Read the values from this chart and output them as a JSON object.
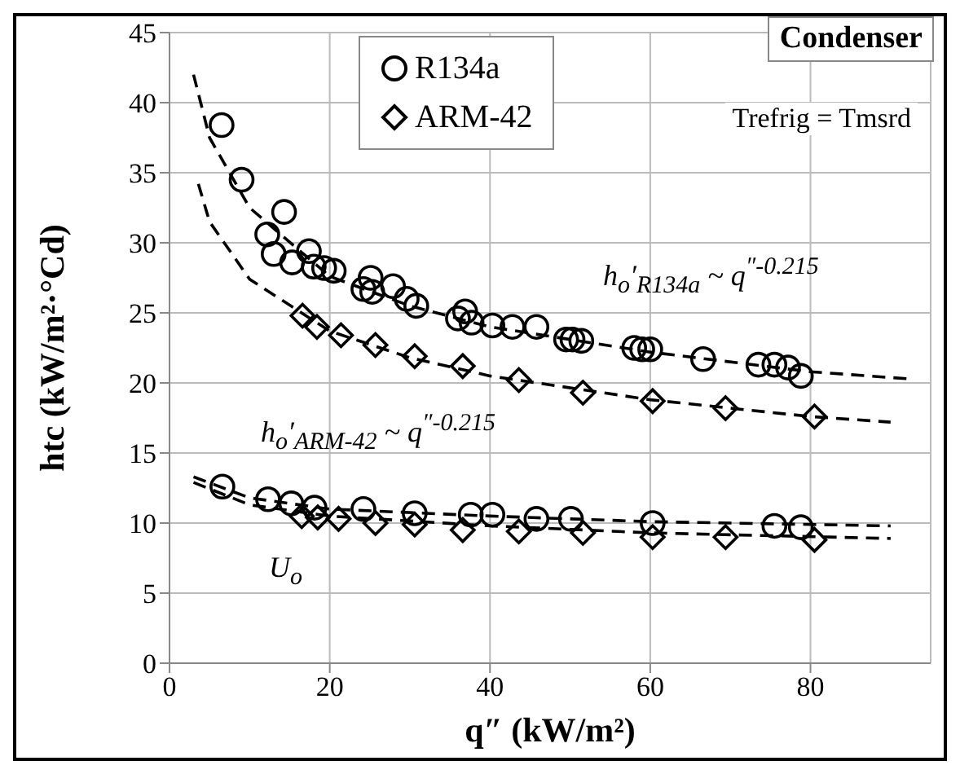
{
  "chart_data": {
    "type": "scatter",
    "xlabel": "q″ (kW/m²)",
    "ylabel": "htc (kW/m²·°Cd)",
    "xlim": [
      0,
      95
    ],
    "xticks": [
      0,
      20,
      40,
      60,
      80
    ],
    "ylim": [
      0,
      45
    ],
    "yticks": [
      0,
      5,
      10,
      15,
      20,
      25,
      30,
      35,
      40,
      45
    ],
    "grid": true,
    "legend": "top",
    "series": [
      {
        "name": "R134a",
        "marker": "circle",
        "color": "#000000",
        "x": [
          6.5,
          9.0,
          12.2,
          13.0,
          14.3,
          15.3,
          17.4,
          18.0,
          19.3,
          20.5,
          24.2,
          25.1,
          25.3,
          27.9,
          29.6,
          30.8,
          36.0,
          36.9,
          37.7,
          40.3,
          42.8,
          45.8,
          49.5,
          50.3,
          51.4,
          58.0,
          59.0,
          60.0,
          66.6,
          73.5,
          75.5,
          77.2,
          78.8,
          6.6,
          12.3,
          15.2,
          18.1,
          24.2,
          30.6,
          37.6,
          40.3,
          45.8,
          50.1,
          60.3,
          75.5,
          78.8
        ],
        "values": [
          38.4,
          34.5,
          30.6,
          29.2,
          32.2,
          28.6,
          29.4,
          28.3,
          28.2,
          28.0,
          26.7,
          27.5,
          26.5,
          26.9,
          26.0,
          25.5,
          24.6,
          25.1,
          24.3,
          24.1,
          24.0,
          24.0,
          23.1,
          23.1,
          23.0,
          22.5,
          22.4,
          22.4,
          21.7,
          21.3,
          21.3,
          21.1,
          20.5,
          12.6,
          11.7,
          11.4,
          11.1,
          11.0,
          10.7,
          10.6,
          10.6,
          10.3,
          10.3,
          10.0,
          9.8,
          9.7
        ]
      },
      {
        "name": "ARM-42",
        "marker": "diamond",
        "color": "#000000",
        "x": [
          16.6,
          18.4,
          21.4,
          25.7,
          30.6,
          36.6,
          43.6,
          51.6,
          60.3,
          69.4,
          80.5,
          16.5,
          18.5,
          21.1,
          25.7,
          30.6,
          36.6,
          43.6,
          51.6,
          60.3,
          69.4,
          80.5
        ],
        "values": [
          24.8,
          24.0,
          23.4,
          22.7,
          21.9,
          21.2,
          20.2,
          19.3,
          18.7,
          18.2,
          17.6,
          10.5,
          10.4,
          10.3,
          10.0,
          9.9,
          9.5,
          9.4,
          9.3,
          9.0,
          9.0,
          8.8
        ]
      },
      {
        "type": "line",
        "line_style": "dashed",
        "marker": "none",
        "color": "#000000",
        "x": [
          3,
          5,
          10,
          20,
          30,
          40,
          60,
          80,
          92
        ],
        "values": [
          42,
          37.5,
          32.5,
          27.6,
          25.5,
          24.0,
          22.2,
          20.8,
          20.3
        ]
      },
      {
        "type": "line",
        "line_style": "dashed",
        "marker": "none",
        "color": "#000000",
        "x": [
          3.6,
          5,
          10,
          20,
          30,
          40,
          60,
          80,
          90
        ],
        "values": [
          34.2,
          31.5,
          27.4,
          23.7,
          21.8,
          20.5,
          18.8,
          17.6,
          17.2
        ]
      },
      {
        "type": "line",
        "line_style": "dashed",
        "marker": "none",
        "color": "#000000",
        "x": [
          3,
          10,
          20,
          40,
          60,
          90
        ],
        "values": [
          13.3,
          11.8,
          11.0,
          10.5,
          10.1,
          9.8
        ]
      },
      {
        "type": "line",
        "line_style": "dashed",
        "marker": "none",
        "color": "#000000",
        "x": [
          3,
          10,
          20,
          40,
          60,
          90
        ],
        "values": [
          12.9,
          11.3,
          10.5,
          9.8,
          9.3,
          8.9
        ]
      }
    ],
    "annotations": [
      "Condenser",
      "Trefrig = Tmsrd",
      "h$_{o}$′$_{R134a}$ ~ q$^{″-0.215}$",
      "h$_{o}$′$_{ARM-42}$ ~ q$^{″-0.215}$",
      "U$_{o}$"
    ]
  }
}
